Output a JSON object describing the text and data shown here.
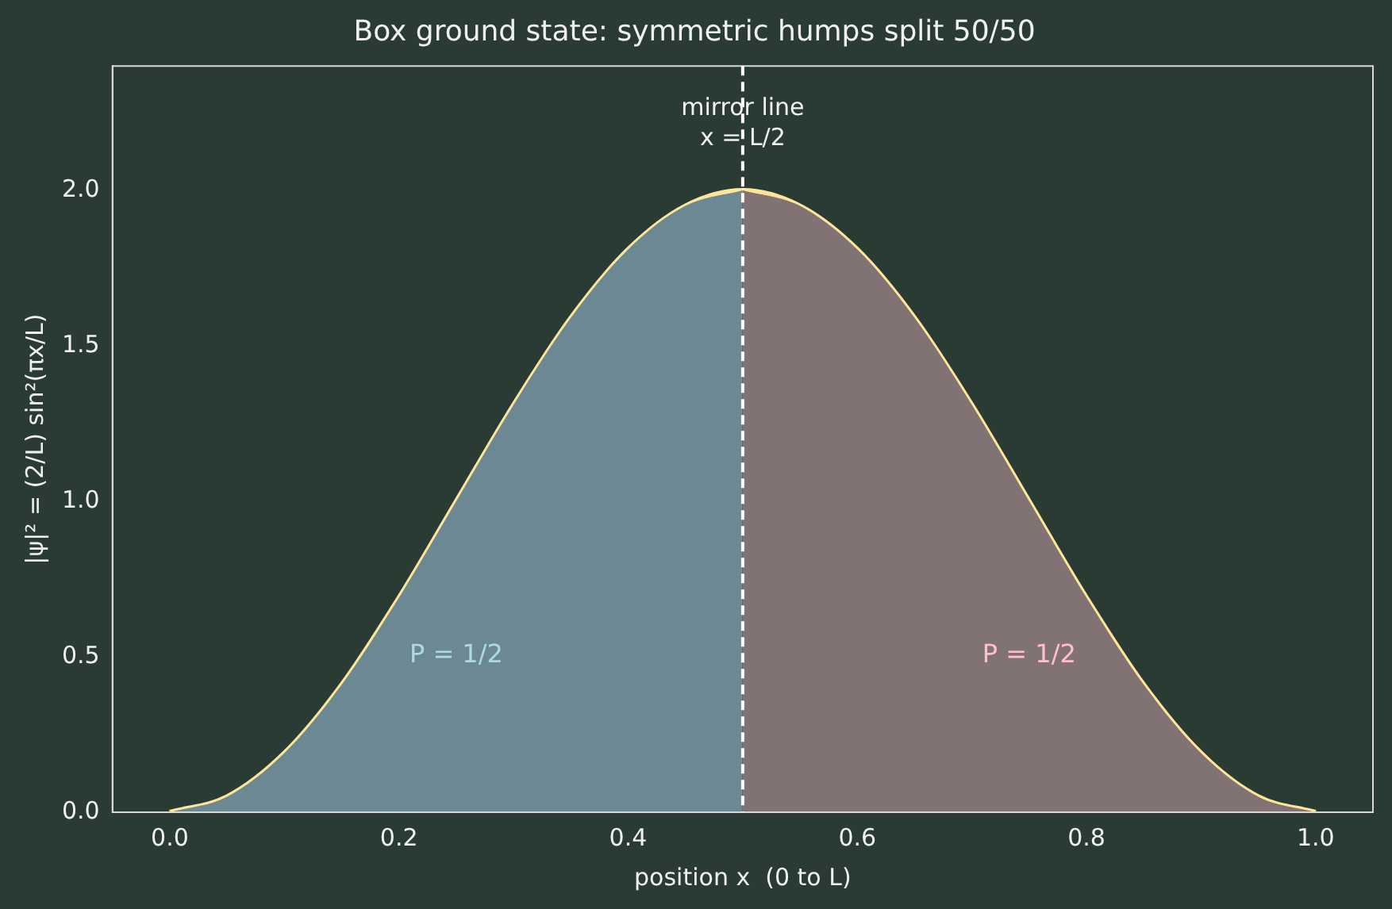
{
  "chart_data": {
    "type": "area",
    "title": "Box ground state: symmetric humps split 50/50",
    "xlabel": "position x  (0 to L)",
    "ylabel": "|ψ|² = (2/L) sin²(πx/L)",
    "xlim": [
      -0.05,
      1.05
    ],
    "ylim": [
      0,
      2.4
    ],
    "xticks": [
      {
        "value": 0,
        "label": "0.0"
      },
      0.2,
      0.4,
      0.6,
      0.8,
      {
        "value": 1,
        "label": "1.0"
      }
    ],
    "yticks": [
      {
        "value": 0,
        "label": "0.0"
      },
      0.5,
      {
        "value": 1,
        "label": "1.0"
      },
      1.5,
      {
        "value": 2,
        "label": "2.0"
      }
    ],
    "grid": false,
    "legend": false,
    "series": [
      {
        "color": "#6b8893",
        "x": [
          0,
          0.05,
          0.1,
          0.15,
          0.2,
          0.25,
          0.3,
          0.35,
          0.4,
          0.45,
          0.5
        ],
        "values": [
          0,
          0.05,
          0.19,
          0.41,
          0.69,
          1.0,
          1.31,
          1.59,
          1.81,
          1.95,
          2.0
        ]
      },
      {
        "color": "#817274",
        "x": [
          0.5,
          0.55,
          0.6,
          0.65,
          0.7,
          0.75,
          0.8,
          0.85,
          0.9,
          0.95,
          1.0
        ],
        "values": [
          2.0,
          1.95,
          1.81,
          1.59,
          1.31,
          1.0,
          0.69,
          0.41,
          0.19,
          0.05,
          0
        ]
      },
      {
        "type": "line",
        "color": "#ffe599",
        "x": [
          0,
          0.05,
          0.1,
          0.15,
          0.2,
          0.25,
          0.3,
          0.35,
          0.4,
          0.45,
          0.5,
          0.55,
          0.6,
          0.65,
          0.7,
          0.75,
          0.8,
          0.85,
          0.9,
          0.95,
          1.0
        ],
        "values": [
          0,
          0.05,
          0.19,
          0.41,
          0.69,
          1.0,
          1.31,
          1.59,
          1.81,
          1.95,
          2.0,
          1.95,
          1.81,
          1.59,
          1.31,
          1.0,
          0.69,
          0.41,
          0.19,
          0.05,
          0
        ]
      }
    ],
    "ref_lines": [
      {
        "axis": "x",
        "value": 0.5,
        "label": "mirror line\nx = L/2",
        "line_style": "dashed",
        "color": "#ffffff"
      }
    ],
    "annotations": [
      "P = 1/2",
      "P = 1/2"
    ]
  }
}
